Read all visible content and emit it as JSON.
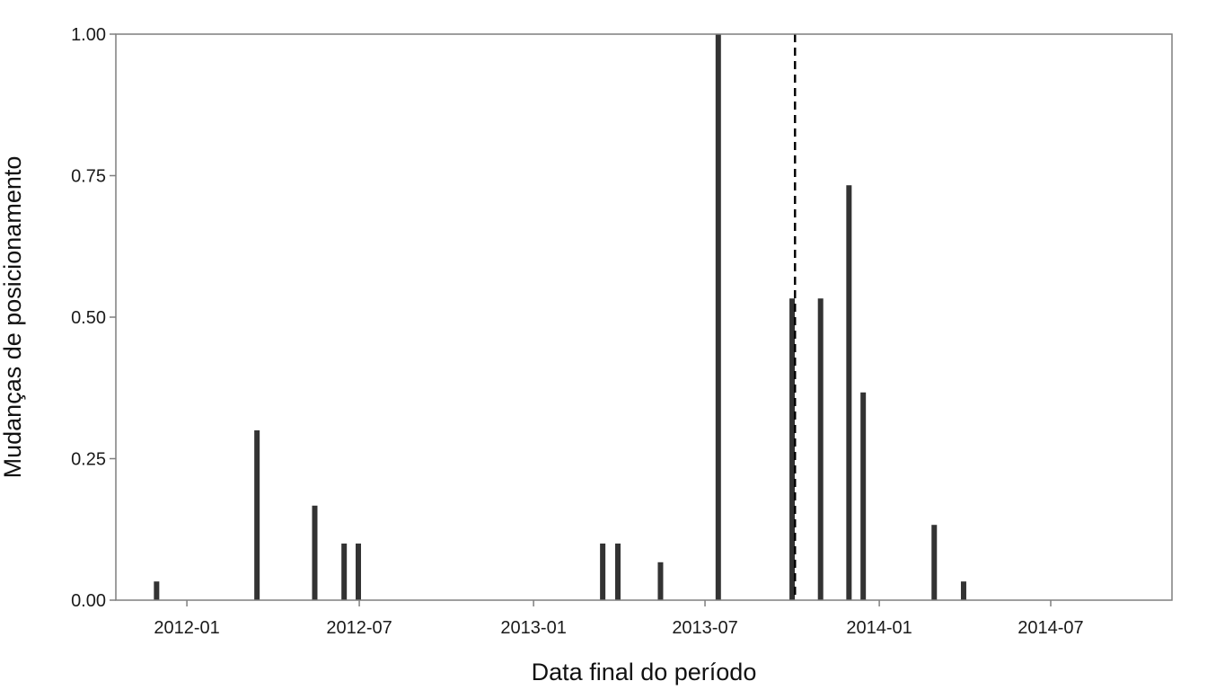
{
  "chart_data": {
    "type": "bar",
    "title": "",
    "xlabel": "Data final do período",
    "ylabel": "Mudanças de posicionamento",
    "x_axis_type": "date",
    "xlim": [
      "2011-10-18",
      "2014-11-06"
    ],
    "ylim": [
      0,
      1
    ],
    "x_ticks": [
      {
        "date": "2012-01-01",
        "label": "2012-01"
      },
      {
        "date": "2012-07-01",
        "label": "2012-07"
      },
      {
        "date": "2013-01-01",
        "label": "2013-01"
      },
      {
        "date": "2013-07-01",
        "label": "2013-07"
      },
      {
        "date": "2014-01-01",
        "label": "2014-01"
      },
      {
        "date": "2014-07-01",
        "label": "2014-07"
      }
    ],
    "y_ticks": [
      {
        "value": 0,
        "label": "0.00"
      },
      {
        "value": 0.25,
        "label": "0.25"
      },
      {
        "value": 0.5,
        "label": "0.50"
      },
      {
        "value": 0.75,
        "label": "0.75"
      },
      {
        "value": 1,
        "label": "1.00"
      }
    ],
    "bars": [
      {
        "date": "2011-11-30",
        "value": 0.033
      },
      {
        "date": "2012-03-15",
        "value": 0.3
      },
      {
        "date": "2012-05-15",
        "value": 0.167
      },
      {
        "date": "2012-06-15",
        "value": 0.1
      },
      {
        "date": "2012-06-30",
        "value": 0.1
      },
      {
        "date": "2013-03-15",
        "value": 0.1
      },
      {
        "date": "2013-03-31",
        "value": 0.1
      },
      {
        "date": "2013-05-15",
        "value": 0.067
      },
      {
        "date": "2013-07-15",
        "value": 1.0
      },
      {
        "date": "2013-10-01",
        "value": 0.533
      },
      {
        "date": "2013-10-31",
        "value": 0.533
      },
      {
        "date": "2013-11-30",
        "value": 0.733
      },
      {
        "date": "2013-12-15",
        "value": 0.367
      },
      {
        "date": "2014-02-28",
        "value": 0.133
      },
      {
        "date": "2014-03-31",
        "value": 0.033
      }
    ],
    "reference_line": {
      "date": "2013-10-04",
      "style": "dashed"
    },
    "bar_color": "#333333",
    "grid": false,
    "legend": "none"
  }
}
